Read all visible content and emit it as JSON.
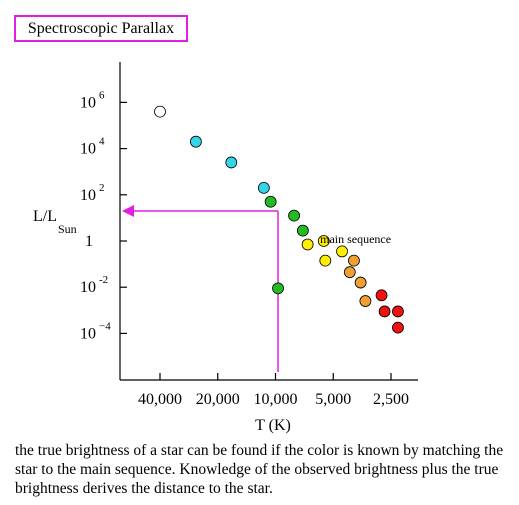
{
  "title": "Spectroscopic Parallax",
  "caption": "the true brightness of a star can be found if the color is known by matching the star to the main sequence.  Knowledge of the observed brightness plus the true brightness derives the distance to the star.",
  "colors": {
    "title_border": "#e020e0",
    "arrow": "#e020e0",
    "white_star": "#ffffff",
    "cyan_star": "#33d6e6",
    "green_star": "#22bb22",
    "yellow_star": "#ffee00",
    "orange_star": "#f0a030",
    "red_star": "#ee1111"
  },
  "chart_data": {
    "type": "scatter",
    "xlabel": "T (K)",
    "ylabel_main": "L/L",
    "ylabel_sub": "Sun",
    "x_ticks": [
      {
        "value": 40000,
        "label": "40,000"
      },
      {
        "value": 20000,
        "label": "20,000"
      },
      {
        "value": 10000,
        "label": "10,000"
      },
      {
        "value": 5000,
        "label": "5,000"
      },
      {
        "value": 2500,
        "label": "2,500"
      }
    ],
    "y_ticks": [
      {
        "exp": 6,
        "base": "10",
        "sup": "6"
      },
      {
        "exp": 4,
        "base": "10",
        "sup": "4"
      },
      {
        "exp": 2,
        "base": "10",
        "sup": "2"
      },
      {
        "exp": 0,
        "base": "1",
        "sup": ""
      },
      {
        "exp": -2,
        "base": "10",
        "sup": "-2"
      },
      {
        "exp": -4,
        "base": "10",
        "sup": "−4"
      }
    ],
    "annotation": "main sequence",
    "annotation_at": {
      "T": 3800,
      "logL": 0.0
    },
    "main_sequence": [
      {
        "T": 40000,
        "logL": 5.6,
        "color": "white"
      },
      {
        "T": 26000,
        "logL": 4.3,
        "color": "cyan"
      },
      {
        "T": 17000,
        "logL": 3.4,
        "color": "cyan"
      },
      {
        "T": 11500,
        "logL": 2.3,
        "color": "cyan"
      },
      {
        "T": 10600,
        "logL": 1.7,
        "color": "green"
      },
      {
        "T": 8000,
        "logL": 1.1,
        "color": "green"
      },
      {
        "T": 7200,
        "logL": 0.45,
        "color": "green"
      },
      {
        "T": 6800,
        "logL": -0.15,
        "color": "yellow"
      },
      {
        "T": 5600,
        "logL": 0.0,
        "color": "yellow"
      },
      {
        "T": 5500,
        "logL": -0.85,
        "color": "yellow"
      },
      {
        "T": 4500,
        "logL": -0.45,
        "color": "yellow"
      },
      {
        "T": 3900,
        "logL": -0.85,
        "color": "orange"
      },
      {
        "T": 4100,
        "logL": -1.35,
        "color": "orange"
      },
      {
        "T": 3600,
        "logL": -1.8,
        "color": "orange"
      },
      {
        "T": 3400,
        "logL": -2.6,
        "color": "orange"
      },
      {
        "T": 2800,
        "logL": -2.35,
        "color": "red"
      },
      {
        "T": 2700,
        "logL": -3.05,
        "color": "red"
      },
      {
        "T": 2300,
        "logL": -3.05,
        "color": "red"
      },
      {
        "T": 2300,
        "logL": -3.75,
        "color": "red"
      }
    ],
    "observed_star": {
      "T": 9700,
      "logL": -2.05,
      "color": "green"
    },
    "arrow_logL": 1.3,
    "arrow_T": 9700,
    "grid": false
  }
}
